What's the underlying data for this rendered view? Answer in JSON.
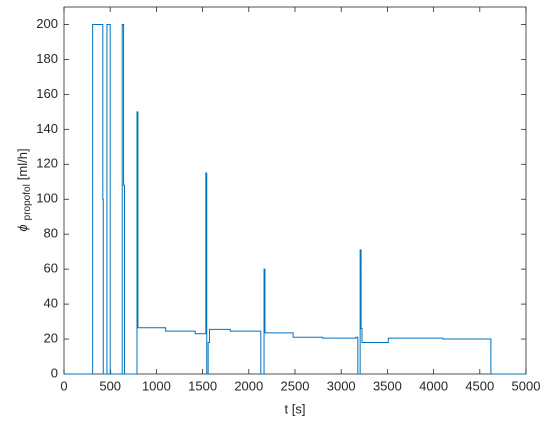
{
  "chart_data": {
    "type": "stairs",
    "xlabel": "t [s]",
    "ylabel": {
      "symbol": "ϕ",
      "subscript": "propofol",
      "unit": "[ml/h]"
    },
    "x": [
      0,
      310,
      420,
      425,
      465,
      500,
      505,
      630,
      645,
      655,
      790,
      800,
      1100,
      1420,
      1535,
      1545,
      1560,
      1575,
      1800,
      2130,
      2165,
      2175,
      2480,
      2800,
      3160,
      3180,
      3205,
      3215,
      3225,
      3510,
      4100,
      4620,
      5000
    ],
    "values": [
      0,
      200,
      100,
      0,
      200,
      2,
      0,
      200,
      108,
      0,
      150,
      26.5,
      24.5,
      23,
      115,
      0,
      18,
      25.5,
      24.5,
      0,
      60,
      23.5,
      21,
      20.5,
      21,
      0,
      71,
      26,
      18,
      20.5,
      20,
      0,
      0
    ],
    "color": "#0072bd",
    "xlim": [
      0,
      5000
    ],
    "xticks": [
      0,
      500,
      1000,
      1500,
      2000,
      2500,
      3000,
      3500,
      4000,
      4500,
      5000
    ],
    "ylim": [
      0,
      210
    ],
    "yticks": [
      0,
      20,
      40,
      60,
      80,
      100,
      120,
      140,
      160,
      180,
      200
    ]
  }
}
